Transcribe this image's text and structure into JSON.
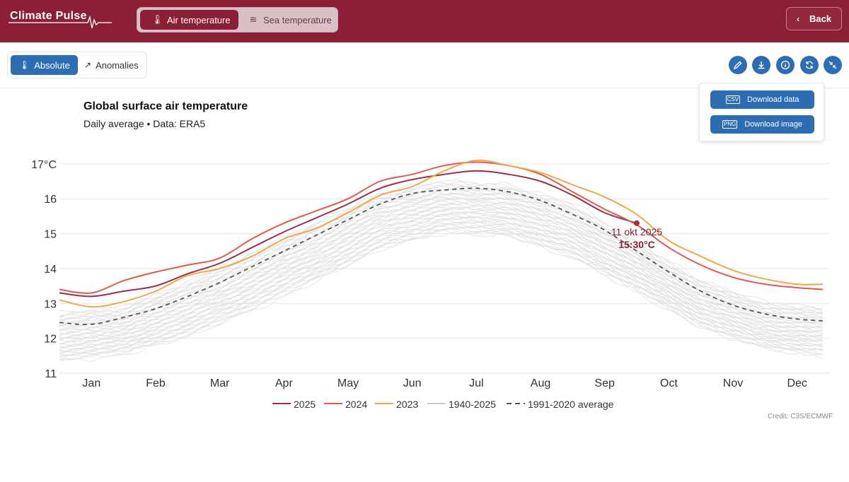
{
  "app": {
    "brand": "Climate Pulse",
    "modes": [
      {
        "label": "Air temperature",
        "icon": "thermometer-icon",
        "active": true
      },
      {
        "label": "Sea temperature",
        "icon": "waves-icon",
        "active": false
      }
    ],
    "back_label": "Back",
    "colors": {
      "brand": "#8b1f33",
      "accent": "#2c6db4"
    }
  },
  "toolbar": {
    "views": [
      {
        "label": "Absolute",
        "icon": "thermometer-icon",
        "active": true
      },
      {
        "label": "Anomalies",
        "icon": "trend-up-icon",
        "active": false
      }
    ],
    "tools": [
      "edit-icon",
      "download-icon",
      "info-icon",
      "refresh-icon",
      "collapse-icon"
    ]
  },
  "download_menu": {
    "items": [
      {
        "label": "Download data",
        "icon": "csv-file-icon",
        "file_tag": "CSV"
      },
      {
        "label": "Download image",
        "icon": "png-file-icon",
        "file_tag": "PNG"
      }
    ]
  },
  "chart": {
    "title": "Global surface air temperature",
    "subtitle": "Daily average • Data: ERA5",
    "credit": "Credit: C3S/ECMWF",
    "tooltip": {
      "date": "11 okt 2025",
      "value": "15:30°C"
    }
  },
  "chart_data": {
    "type": "line",
    "title": "Global surface air temperature",
    "subtitle": "Daily average • Data: ERA5",
    "x_ticks": [
      "Jan",
      "Feb",
      "Mar",
      "Apr",
      "May",
      "Jun",
      "Jul",
      "Aug",
      "Sep",
      "Oct",
      "Nov",
      "Dec"
    ],
    "y_ticks": [
      "17°C",
      "16",
      "15",
      "14",
      "13",
      "12",
      "11"
    ],
    "ylim": [
      11,
      17.2
    ],
    "grid": true,
    "legend_position": "bottom",
    "legend": [
      "2025",
      "2024",
      "2023",
      "1940-2025",
      "1991-2020 average"
    ],
    "month_index": [
      0,
      1,
      2,
      3,
      4,
      5,
      6,
      7,
      8,
      9,
      10,
      11,
      12
    ],
    "series": [
      {
        "name": "2025",
        "color": "#9c2f45",
        "points": [
          [
            0,
            13.3
          ],
          [
            0.5,
            13.2
          ],
          [
            1,
            13.35
          ],
          [
            1.5,
            13.5
          ],
          [
            2,
            13.85
          ],
          [
            2.5,
            14.15
          ],
          [
            3,
            14.6
          ],
          [
            3.5,
            15.05
          ],
          [
            4,
            15.45
          ],
          [
            4.5,
            15.85
          ],
          [
            5,
            16.3
          ],
          [
            5.5,
            16.55
          ],
          [
            6,
            16.7
          ],
          [
            6.5,
            16.8
          ],
          [
            7,
            16.7
          ],
          [
            7.5,
            16.5
          ],
          [
            8,
            16.1
          ],
          [
            8.5,
            15.6
          ],
          [
            9,
            15.3
          ]
        ]
      },
      {
        "name": "2024",
        "color": "#e05a4e",
        "points": [
          [
            0,
            13.4
          ],
          [
            0.5,
            13.3
          ],
          [
            1,
            13.65
          ],
          [
            1.5,
            13.9
          ],
          [
            2,
            14.1
          ],
          [
            2.5,
            14.3
          ],
          [
            3,
            14.85
          ],
          [
            3.5,
            15.3
          ],
          [
            4,
            15.65
          ],
          [
            4.5,
            16.0
          ],
          [
            5,
            16.5
          ],
          [
            5.5,
            16.7
          ],
          [
            6,
            16.95
          ],
          [
            6.5,
            17.05
          ],
          [
            7,
            16.95
          ],
          [
            7.5,
            16.7
          ],
          [
            8,
            16.2
          ],
          [
            8.5,
            15.7
          ],
          [
            9,
            15.25
          ],
          [
            9.5,
            14.6
          ],
          [
            10,
            14.1
          ],
          [
            10.5,
            13.75
          ],
          [
            11,
            13.55
          ],
          [
            11.5,
            13.45
          ],
          [
            11.9,
            13.4
          ]
        ]
      },
      {
        "name": "2023",
        "color": "#f0a845",
        "points": [
          [
            0,
            13.1
          ],
          [
            0.5,
            12.9
          ],
          [
            1,
            13.05
          ],
          [
            1.5,
            13.35
          ],
          [
            2,
            13.8
          ],
          [
            2.5,
            14.0
          ],
          [
            3,
            14.35
          ],
          [
            3.5,
            14.85
          ],
          [
            4,
            15.15
          ],
          [
            4.5,
            15.6
          ],
          [
            5,
            16.1
          ],
          [
            5.5,
            16.35
          ],
          [
            6,
            16.8
          ],
          [
            6.5,
            17.1
          ],
          [
            7,
            16.95
          ],
          [
            7.5,
            16.75
          ],
          [
            8,
            16.4
          ],
          [
            8.5,
            16.05
          ],
          [
            9,
            15.55
          ],
          [
            9.5,
            14.8
          ],
          [
            10,
            14.35
          ],
          [
            10.5,
            13.95
          ],
          [
            11,
            13.7
          ],
          [
            11.5,
            13.55
          ],
          [
            11.9,
            13.55
          ]
        ]
      },
      {
        "name": "1991-2020 average",
        "color": "#555555",
        "dashed": true,
        "points": [
          [
            0,
            12.45
          ],
          [
            0.5,
            12.4
          ],
          [
            1,
            12.6
          ],
          [
            1.5,
            12.85
          ],
          [
            2,
            13.2
          ],
          [
            2.5,
            13.6
          ],
          [
            3,
            14.05
          ],
          [
            3.5,
            14.5
          ],
          [
            4,
            14.95
          ],
          [
            4.5,
            15.4
          ],
          [
            5,
            15.85
          ],
          [
            5.5,
            16.15
          ],
          [
            6,
            16.25
          ],
          [
            6.5,
            16.3
          ],
          [
            7,
            16.2
          ],
          [
            7.5,
            15.95
          ],
          [
            8,
            15.55
          ],
          [
            8.5,
            15.1
          ],
          [
            9,
            14.5
          ],
          [
            9.5,
            13.9
          ],
          [
            10,
            13.35
          ],
          [
            10.5,
            12.95
          ],
          [
            11,
            12.7
          ],
          [
            11.5,
            12.55
          ],
          [
            11.9,
            12.5
          ]
        ]
      }
    ],
    "band_1940_2025": {
      "name": "1940-2025",
      "color": "#dddddd",
      "upper": [
        [
          0,
          12.7
        ],
        [
          1,
          12.9
        ],
        [
          2,
          13.6
        ],
        [
          3,
          14.45
        ],
        [
          4,
          15.3
        ],
        [
          5,
          16.15
        ],
        [
          6,
          16.5
        ],
        [
          7,
          16.4
        ],
        [
          8,
          15.85
        ],
        [
          9,
          14.75
        ],
        [
          10,
          13.65
        ],
        [
          11,
          13.0
        ],
        [
          11.9,
          12.85
        ]
      ],
      "lower": [
        [
          0,
          11.35
        ],
        [
          1,
          11.55
        ],
        [
          2,
          12.05
        ],
        [
          3,
          12.8
        ],
        [
          4,
          13.65
        ],
        [
          5,
          14.55
        ],
        [
          6,
          15.05
        ],
        [
          7,
          14.95
        ],
        [
          8,
          14.3
        ],
        [
          9,
          13.35
        ],
        [
          10,
          12.3
        ],
        [
          11,
          11.7
        ],
        [
          11.9,
          11.5
        ]
      ]
    },
    "highlight": {
      "series": "2025",
      "label": "11 okt 2025",
      "value_label": "15:30°C",
      "x": 9.0,
      "y": 15.3
    }
  }
}
